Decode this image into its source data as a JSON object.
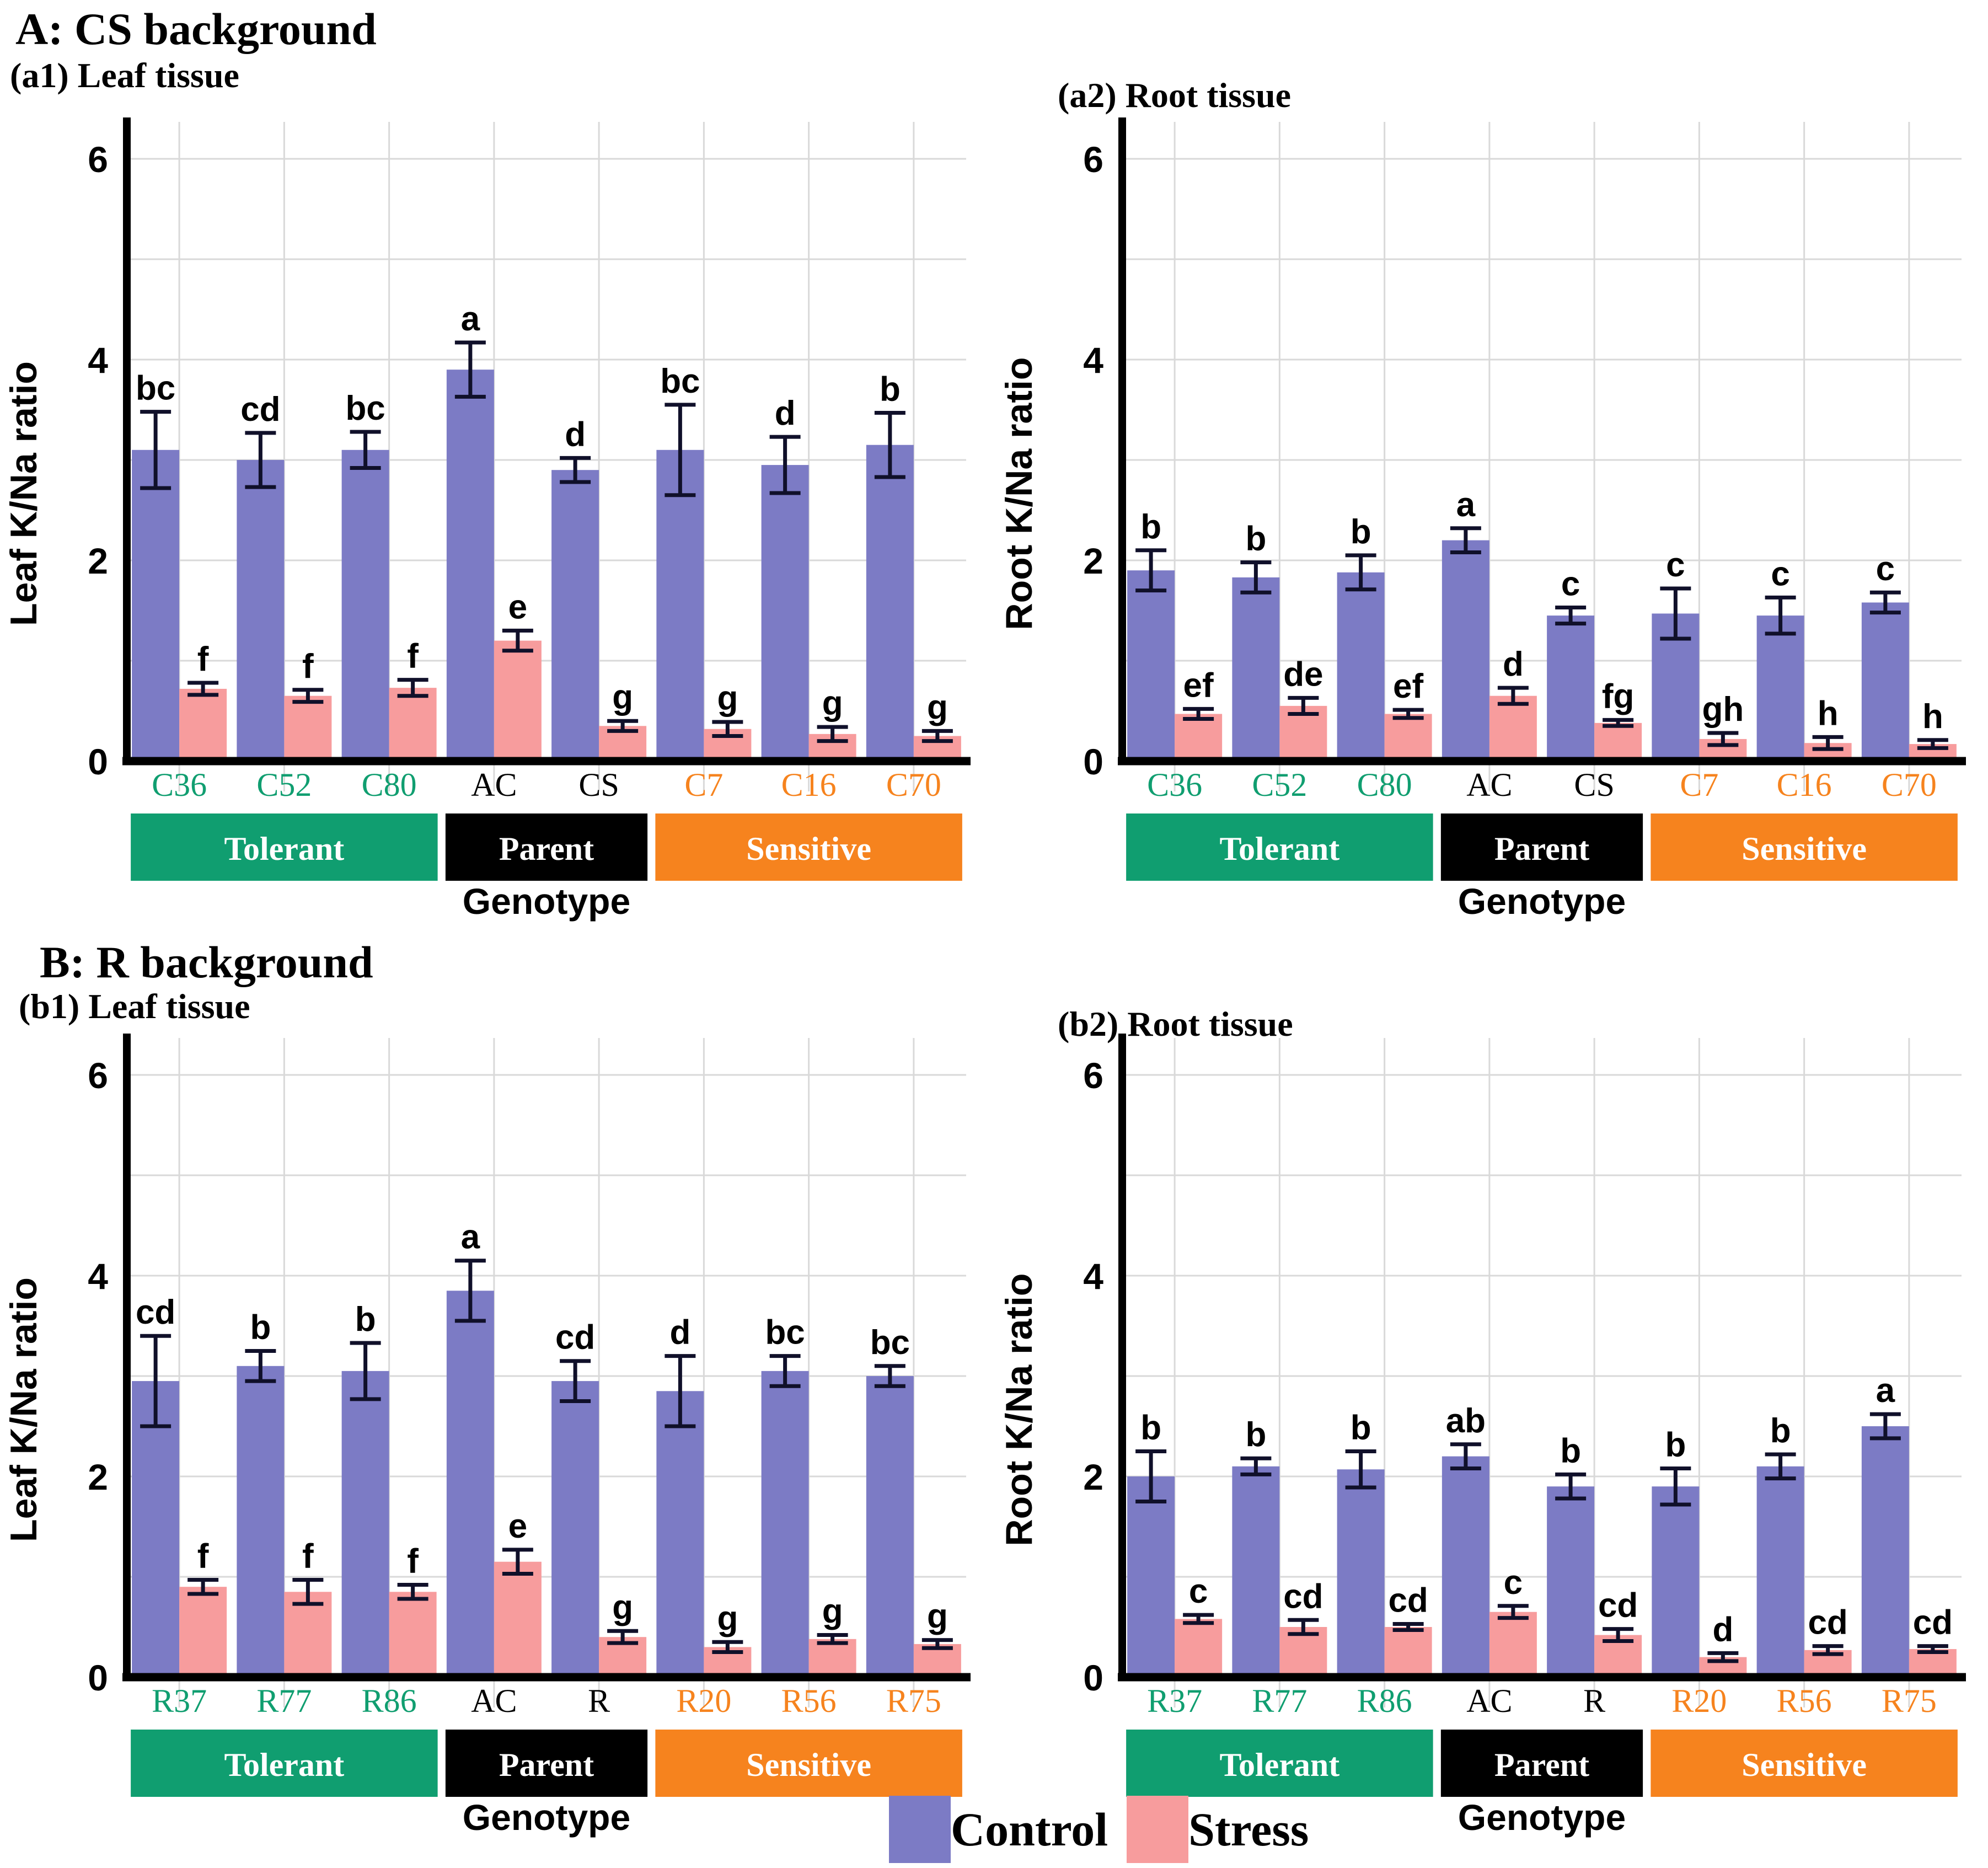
{
  "sections": [
    {
      "title": "A: CS background"
    },
    {
      "title": "B: R background"
    }
  ],
  "legend": {
    "items": [
      {
        "label": "Control",
        "color_key": "control"
      },
      {
        "label": "Stress",
        "color_key": "stress"
      }
    ]
  },
  "colors": {
    "control": "#7c7bc5",
    "stress": "#f79c9d",
    "tolerant": "#109e70",
    "parent": "#000000",
    "sensitive": "#f6831e",
    "error": "#10102a",
    "grid": "#d9d9d9",
    "axis": "#000000"
  },
  "chart_data": [
    {
      "type": "bar",
      "subtitle": "(a1) Leaf tissue",
      "ylabel": "Leaf K/Na ratio",
      "xlabel": "Genotype",
      "ylim": [
        0,
        6.3
      ],
      "yticks": [
        0,
        2,
        4,
        6
      ],
      "grid_step": 1,
      "legend_position": "bottom",
      "categories": [
        "C36",
        "C52",
        "C80",
        "AC",
        "CS",
        "C7",
        "C16",
        "C70"
      ],
      "category_groups": [
        {
          "label": "Tolerant",
          "start": 0,
          "end": 2,
          "color_key": "tolerant"
        },
        {
          "label": "Parent",
          "start": 3,
          "end": 4,
          "color_key": "parent"
        },
        {
          "label": "Sensitive",
          "start": 5,
          "end": 7,
          "color_key": "sensitive"
        }
      ],
      "series": [
        {
          "name": "Control",
          "color_key": "control",
          "values": [
            3.1,
            3.0,
            3.1,
            3.9,
            2.9,
            3.1,
            2.95,
            3.15
          ],
          "errors": [
            0.38,
            0.27,
            0.18,
            0.27,
            0.12,
            0.45,
            0.28,
            0.32
          ],
          "letters": [
            "bc",
            "cd",
            "bc",
            "a",
            "d",
            "bc",
            "d",
            "b"
          ]
        },
        {
          "name": "Stress",
          "color_key": "stress",
          "values": [
            0.72,
            0.65,
            0.73,
            1.2,
            0.35,
            0.32,
            0.27,
            0.25
          ],
          "errors": [
            0.06,
            0.06,
            0.08,
            0.1,
            0.05,
            0.07,
            0.07,
            0.05
          ],
          "letters": [
            "f",
            "f",
            "f",
            "e",
            "g",
            "g",
            "g",
            "g"
          ]
        }
      ]
    },
    {
      "type": "bar",
      "subtitle": "(a2) Root tissue",
      "ylabel": "Root K/Na ratio",
      "xlabel": "Genotype",
      "ylim": [
        0,
        6.3
      ],
      "yticks": [
        0,
        2,
        4,
        6
      ],
      "grid_step": 1,
      "legend_position": "bottom",
      "categories": [
        "C36",
        "C52",
        "C80",
        "AC",
        "CS",
        "C7",
        "C16",
        "C70"
      ],
      "category_groups": [
        {
          "label": "Tolerant",
          "start": 0,
          "end": 2,
          "color_key": "tolerant"
        },
        {
          "label": "Parent",
          "start": 3,
          "end": 4,
          "color_key": "parent"
        },
        {
          "label": "Sensitive",
          "start": 5,
          "end": 7,
          "color_key": "sensitive"
        }
      ],
      "series": [
        {
          "name": "Control",
          "color_key": "control",
          "values": [
            1.9,
            1.83,
            1.88,
            2.2,
            1.45,
            1.47,
            1.45,
            1.58
          ],
          "errors": [
            0.2,
            0.15,
            0.17,
            0.12,
            0.08,
            0.25,
            0.18,
            0.1
          ],
          "letters": [
            "b",
            "b",
            "b",
            "a",
            "c",
            "c",
            "c",
            "c"
          ]
        },
        {
          "name": "Stress",
          "color_key": "stress",
          "values": [
            0.47,
            0.55,
            0.47,
            0.65,
            0.38,
            0.22,
            0.18,
            0.17
          ],
          "errors": [
            0.05,
            0.08,
            0.04,
            0.08,
            0.03,
            0.06,
            0.06,
            0.04
          ],
          "letters": [
            "ef",
            "de",
            "ef",
            "d",
            "fg",
            "gh",
            "h",
            "h"
          ]
        }
      ]
    },
    {
      "type": "bar",
      "subtitle": "(b1) Leaf tissue",
      "ylabel": "Leaf K/Na ratio",
      "xlabel": "Genotype",
      "ylim": [
        0,
        6.3
      ],
      "yticks": [
        0,
        2,
        4,
        6
      ],
      "grid_step": 1,
      "legend_position": "bottom",
      "categories": [
        "R37",
        "R77",
        "R86",
        "AC",
        "R",
        "R20",
        "R56",
        "R75"
      ],
      "category_groups": [
        {
          "label": "Tolerant",
          "start": 0,
          "end": 2,
          "color_key": "tolerant"
        },
        {
          "label": "Parent",
          "start": 3,
          "end": 4,
          "color_key": "parent"
        },
        {
          "label": "Sensitive",
          "start": 5,
          "end": 7,
          "color_key": "sensitive"
        }
      ],
      "series": [
        {
          "name": "Control",
          "color_key": "control",
          "values": [
            2.95,
            3.1,
            3.05,
            3.85,
            2.95,
            2.85,
            3.05,
            3.0
          ],
          "errors": [
            0.45,
            0.15,
            0.28,
            0.3,
            0.2,
            0.35,
            0.15,
            0.1
          ],
          "letters": [
            "cd",
            "b",
            "b",
            "a",
            "cd",
            "d",
            "bc",
            "bc"
          ]
        },
        {
          "name": "Stress",
          "color_key": "stress",
          "values": [
            0.9,
            0.85,
            0.85,
            1.15,
            0.4,
            0.3,
            0.38,
            0.33
          ],
          "errors": [
            0.07,
            0.12,
            0.07,
            0.12,
            0.06,
            0.05,
            0.04,
            0.04
          ],
          "letters": [
            "f",
            "f",
            "f",
            "e",
            "g",
            "g",
            "g",
            "g"
          ]
        }
      ]
    },
    {
      "type": "bar",
      "subtitle": "(b2) Root tissue",
      "ylabel": "Root K/Na ratio",
      "xlabel": "Genotype",
      "ylim": [
        0,
        6.3
      ],
      "yticks": [
        0,
        2,
        4,
        6
      ],
      "grid_step": 1,
      "legend_position": "bottom",
      "categories": [
        "R37",
        "R77",
        "R86",
        "AC",
        "R",
        "R20",
        "R56",
        "R75"
      ],
      "category_groups": [
        {
          "label": "Tolerant",
          "start": 0,
          "end": 2,
          "color_key": "tolerant"
        },
        {
          "label": "Parent",
          "start": 3,
          "end": 4,
          "color_key": "parent"
        },
        {
          "label": "Sensitive",
          "start": 5,
          "end": 7,
          "color_key": "sensitive"
        }
      ],
      "series": [
        {
          "name": "Control",
          "color_key": "control",
          "values": [
            2.0,
            2.1,
            2.07,
            2.2,
            1.9,
            1.9,
            2.1,
            2.5
          ],
          "errors": [
            0.25,
            0.08,
            0.18,
            0.12,
            0.12,
            0.18,
            0.12,
            0.12
          ],
          "letters": [
            "b",
            "b",
            "b",
            "ab",
            "b",
            "b",
            "b",
            "a"
          ]
        },
        {
          "name": "Stress",
          "color_key": "stress",
          "values": [
            0.58,
            0.5,
            0.5,
            0.65,
            0.42,
            0.2,
            0.27,
            0.28
          ],
          "errors": [
            0.04,
            0.07,
            0.03,
            0.06,
            0.06,
            0.04,
            0.04,
            0.03
          ],
          "letters": [
            "c",
            "cd",
            "cd",
            "c",
            "cd",
            "d",
            "cd",
            "cd"
          ]
        }
      ]
    }
  ]
}
